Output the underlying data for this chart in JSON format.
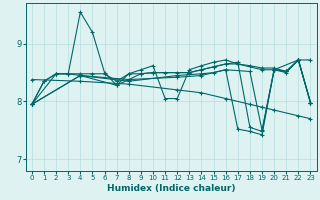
{
  "xlabel": "Humidex (Indice chaleur)",
  "bg_color": "#dff2f2",
  "line_color": "#006666",
  "grid_color": "#b8dede",
  "xlim": [
    -0.5,
    23.5
  ],
  "ylim": [
    6.8,
    9.7
  ],
  "xticks": [
    0,
    1,
    2,
    3,
    4,
    5,
    6,
    7,
    8,
    9,
    10,
    11,
    12,
    13,
    14,
    15,
    16,
    17,
    18,
    19,
    20,
    21,
    22,
    23
  ],
  "yticks": [
    7,
    8,
    9
  ],
  "series1": [
    [
      0,
      7.95
    ],
    [
      1,
      8.35
    ],
    [
      2,
      8.48
    ],
    [
      3,
      8.48
    ],
    [
      4,
      9.55
    ],
    [
      5,
      9.2
    ],
    [
      6,
      8.5
    ],
    [
      7,
      8.28
    ],
    [
      8,
      8.48
    ],
    [
      9,
      8.55
    ],
    [
      10,
      8.62
    ],
    [
      11,
      8.05
    ],
    [
      12,
      8.05
    ],
    [
      13,
      8.55
    ],
    [
      14,
      8.62
    ],
    [
      15,
      8.68
    ],
    [
      16,
      8.72
    ],
    [
      17,
      8.65
    ],
    [
      18,
      8.62
    ],
    [
      19,
      8.58
    ],
    [
      20,
      8.58
    ],
    [
      21,
      8.52
    ],
    [
      22,
      8.72
    ],
    [
      23,
      8.72
    ]
  ],
  "series2": [
    [
      0,
      7.95
    ],
    [
      1,
      8.35
    ],
    [
      2,
      8.48
    ],
    [
      3,
      8.48
    ],
    [
      4,
      8.48
    ],
    [
      5,
      8.48
    ],
    [
      6,
      8.48
    ],
    [
      7,
      8.35
    ],
    [
      8,
      8.48
    ],
    [
      9,
      8.48
    ],
    [
      10,
      8.5
    ],
    [
      11,
      8.5
    ],
    [
      12,
      8.5
    ],
    [
      13,
      8.5
    ],
    [
      14,
      8.55
    ],
    [
      15,
      8.6
    ],
    [
      16,
      8.65
    ],
    [
      17,
      8.68
    ],
    [
      18,
      7.55
    ],
    [
      19,
      7.48
    ],
    [
      20,
      8.55
    ],
    [
      21,
      8.52
    ],
    [
      22,
      8.72
    ],
    [
      23,
      7.98
    ]
  ],
  "series3": [
    [
      0,
      7.95
    ],
    [
      2,
      8.48
    ],
    [
      3,
      8.48
    ],
    [
      4,
      8.45
    ],
    [
      7,
      8.28
    ],
    [
      9,
      8.48
    ],
    [
      10,
      8.5
    ],
    [
      13,
      8.5
    ],
    [
      14,
      8.55
    ],
    [
      15,
      8.6
    ],
    [
      16,
      8.65
    ],
    [
      17,
      8.65
    ],
    [
      19,
      8.55
    ],
    [
      20,
      8.55
    ],
    [
      21,
      8.52
    ],
    [
      22,
      8.72
    ],
    [
      23,
      7.98
    ]
  ],
  "series4": [
    [
      0,
      7.95
    ],
    [
      4,
      8.45
    ],
    [
      8,
      8.35
    ],
    [
      12,
      8.45
    ],
    [
      14,
      8.48
    ],
    [
      15,
      8.5
    ],
    [
      16,
      8.55
    ],
    [
      17,
      7.52
    ],
    [
      18,
      7.48
    ],
    [
      19,
      7.42
    ],
    [
      20,
      8.55
    ],
    [
      22,
      8.72
    ],
    [
      23,
      7.98
    ]
  ],
  "series5": [
    [
      0,
      7.95
    ],
    [
      4,
      8.45
    ],
    [
      8,
      8.38
    ],
    [
      12,
      8.42
    ],
    [
      14,
      8.45
    ],
    [
      16,
      8.55
    ],
    [
      18,
      8.52
    ],
    [
      19,
      7.5
    ],
    [
      20,
      8.55
    ],
    [
      21,
      8.5
    ],
    [
      22,
      8.72
    ],
    [
      23,
      7.98
    ]
  ],
  "series_diagonal": [
    [
      0,
      8.38
    ],
    [
      4,
      8.35
    ],
    [
      8,
      8.3
    ],
    [
      12,
      8.2
    ],
    [
      14,
      8.15
    ],
    [
      16,
      8.05
    ],
    [
      18,
      7.95
    ],
    [
      19,
      7.9
    ],
    [
      20,
      7.85
    ],
    [
      22,
      7.75
    ],
    [
      23,
      7.7
    ]
  ]
}
